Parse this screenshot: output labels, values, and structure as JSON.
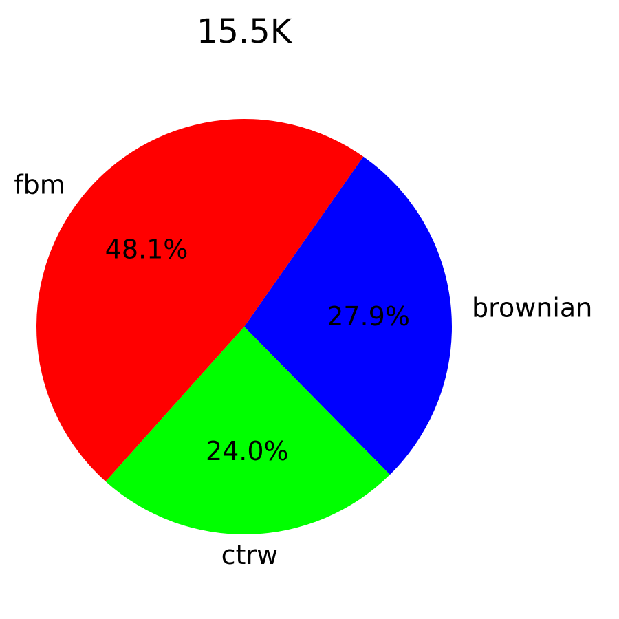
{
  "chart_data": {
    "type": "pie",
    "title": "15.5K",
    "slices": [
      {
        "label": "brownian",
        "value": 27.9,
        "pct_label": "27.9%",
        "color": "#0000ff"
      },
      {
        "label": "ctrw",
        "value": 24.0,
        "pct_label": "24.0%",
        "color": "#00ff00"
      },
      {
        "label": "fbm",
        "value": 48.1,
        "pct_label": "48.1%",
        "color": "#ff0000"
      }
    ],
    "legend": "none"
  }
}
